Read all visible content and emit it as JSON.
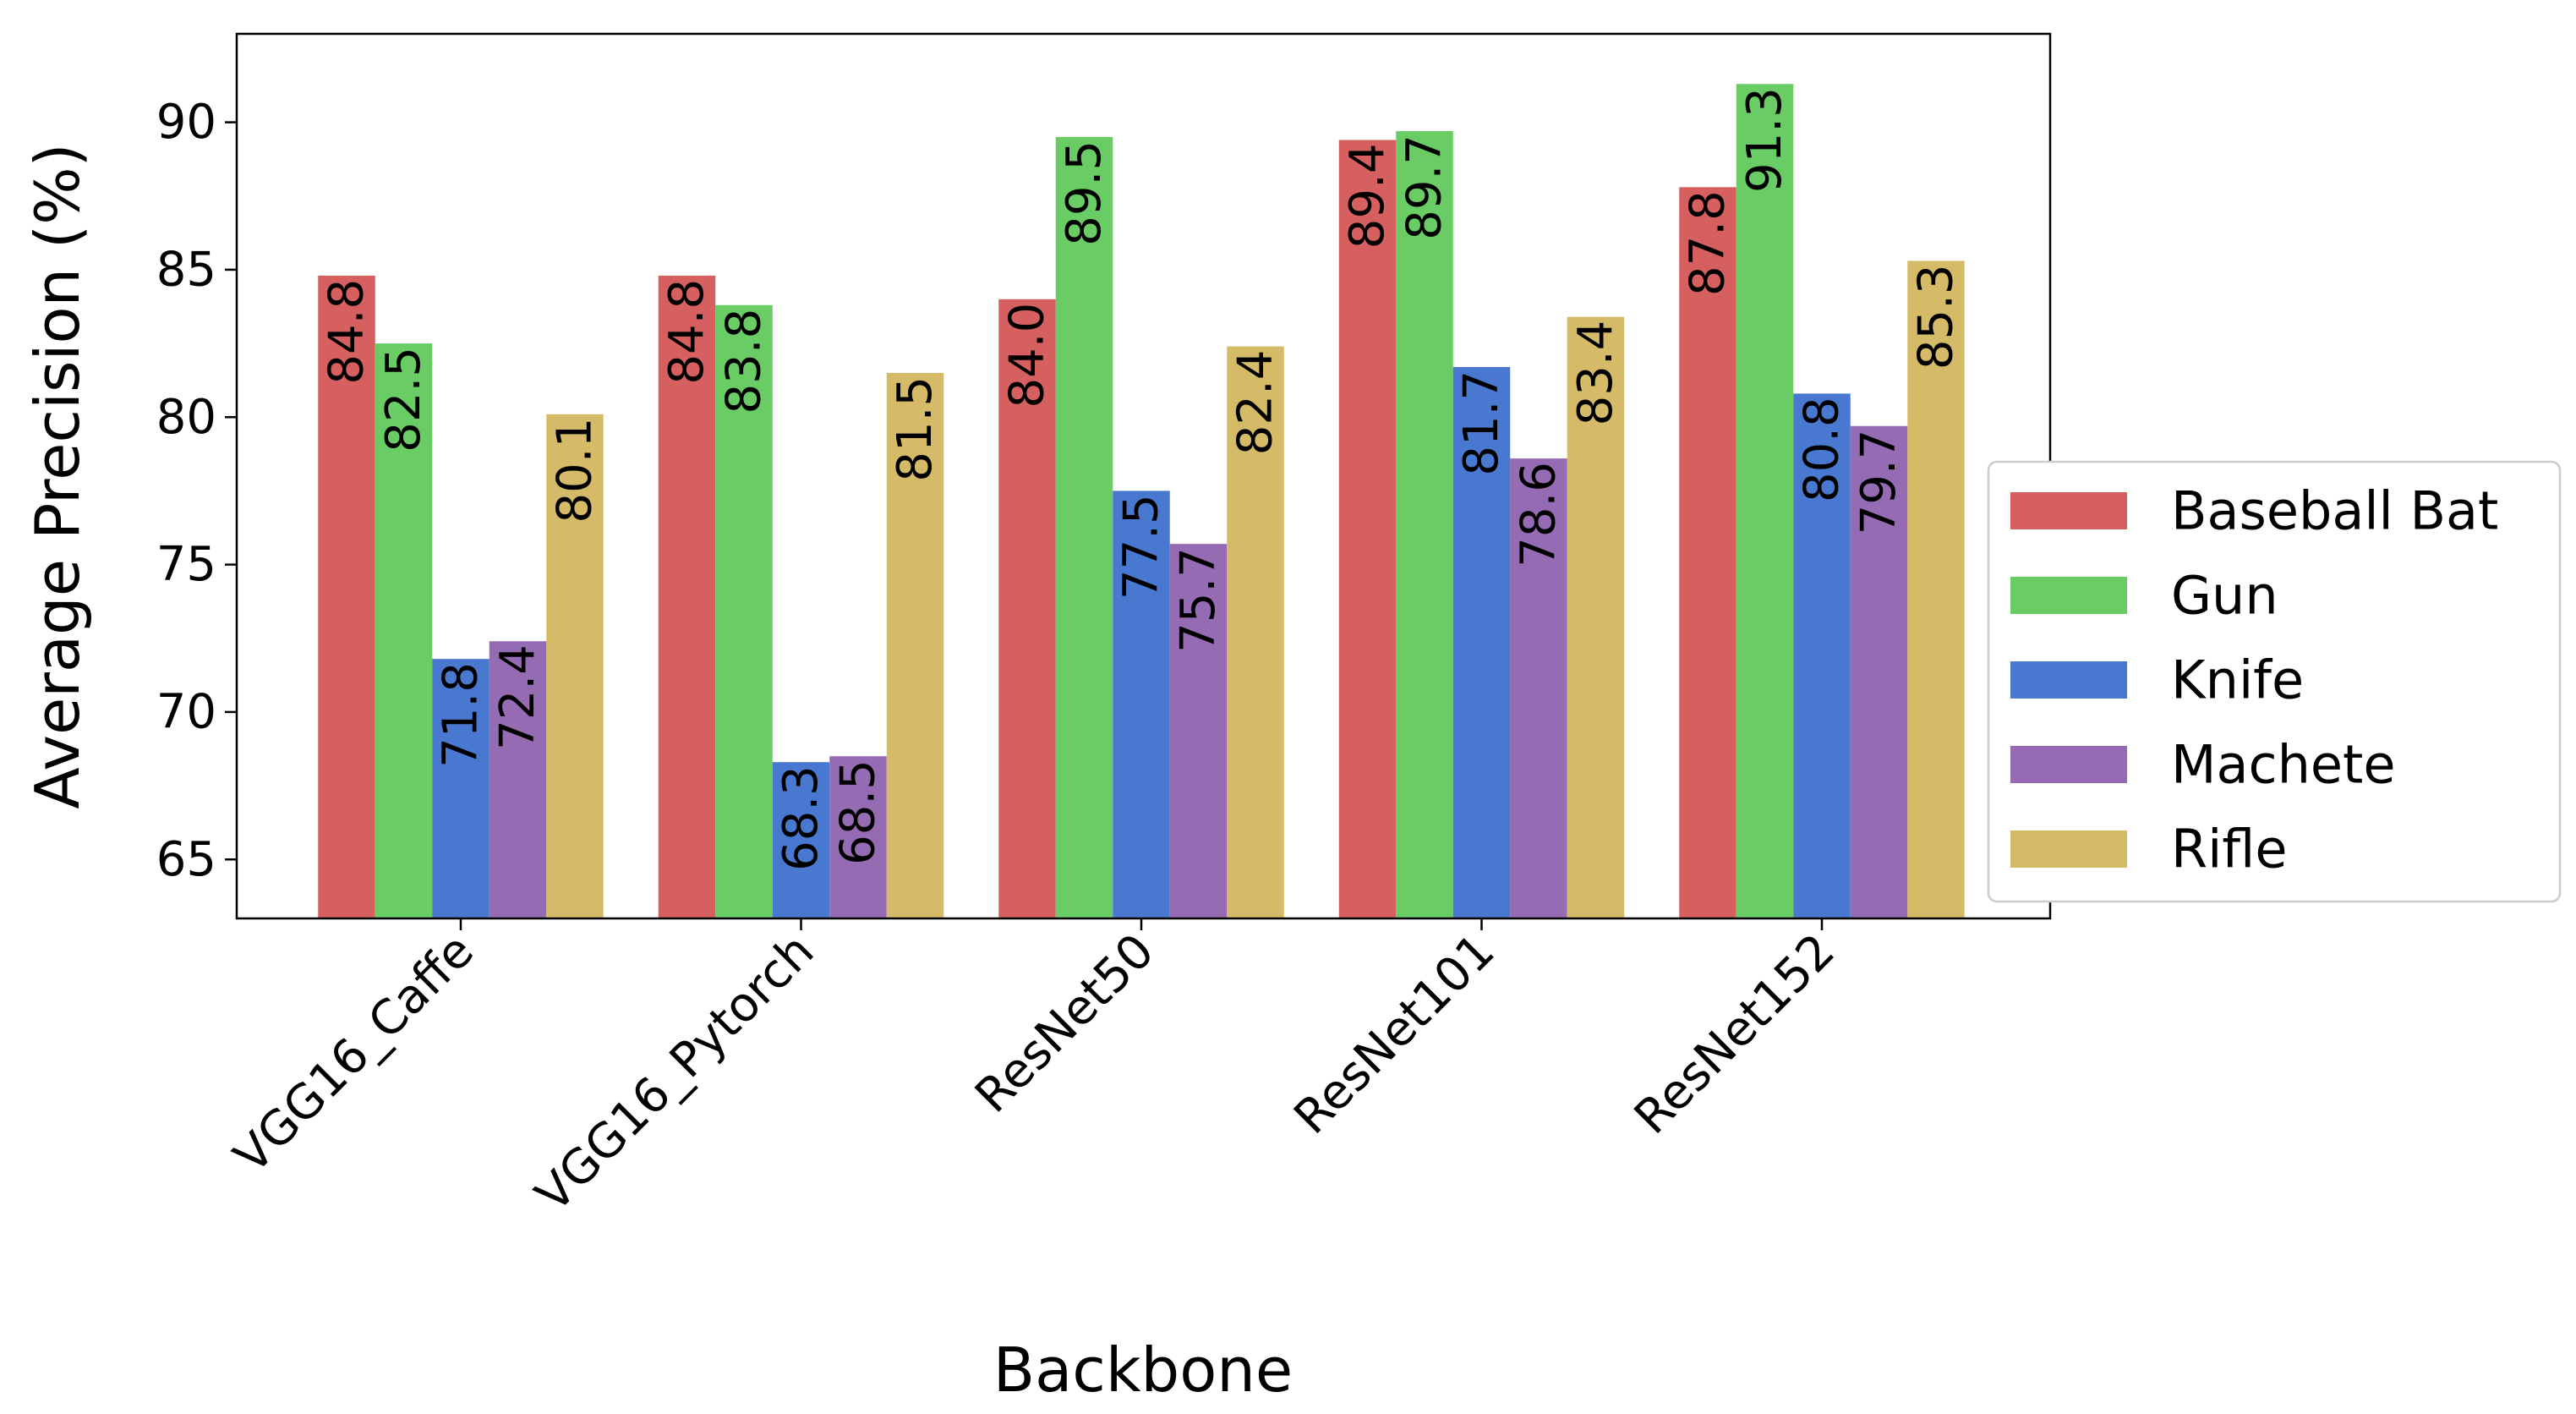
{
  "chart_data": {
    "type": "bar",
    "xlabel": "Backbone",
    "ylabel": "Average Precision (%)",
    "categories": [
      "VGG16_Caffe",
      "VGG16_Pytorch",
      "ResNet50",
      "ResNet101",
      "ResNet152"
    ],
    "series": [
      {
        "name": "Baseball Bat",
        "color": "#d65f5f",
        "values": [
          84.8,
          84.8,
          84.0,
          89.4,
          87.8
        ],
        "labels": [
          "84.8",
          "84.8",
          "84.0",
          "89.4",
          "87.8"
        ]
      },
      {
        "name": "Gun",
        "color": "#6acc64",
        "values": [
          82.5,
          83.8,
          89.5,
          89.7,
          91.3
        ],
        "labels": [
          "82.5",
          "83.8",
          "89.5",
          "89.7",
          "91.3"
        ]
      },
      {
        "name": "Knife",
        "color": "#4878d0",
        "values": [
          71.8,
          68.3,
          77.5,
          81.7,
          80.8
        ],
        "labels": [
          "71.8",
          "68.3",
          "77.5",
          "81.7",
          "80.8"
        ]
      },
      {
        "name": "Machete",
        "color": "#956cb4",
        "values": [
          72.4,
          68.5,
          75.7,
          78.6,
          79.7
        ],
        "labels": [
          "72.4",
          "68.5",
          "75.7",
          "78.6",
          "79.7"
        ]
      },
      {
        "name": "Rifle",
        "color": "#d5bb67",
        "values": [
          80.1,
          81.5,
          82.4,
          83.4,
          85.3
        ],
        "labels": [
          "80.1",
          "81.5",
          "82.4",
          "83.4",
          "85.3"
        ]
      }
    ],
    "yticks": [
      65,
      70,
      75,
      80,
      85,
      90
    ],
    "ylim": [
      63,
      93
    ],
    "grid": false,
    "legend_position": "right"
  }
}
